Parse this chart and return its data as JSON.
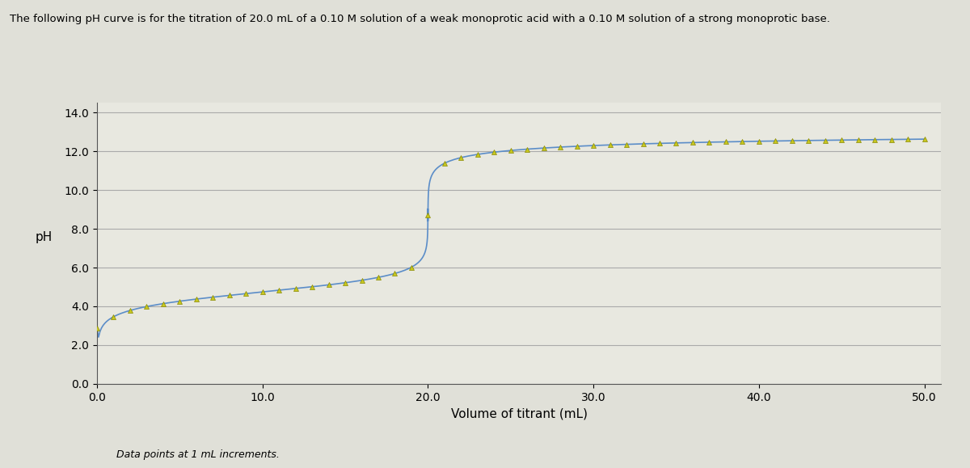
{
  "title": "The following pH curve is for the titration of 20.0 mL of a 0.10 M solution of a weak monoprotic acid with a 0.10 M solution of a strong monoprotic base.",
  "xlabel": "Volume of titrant (mL)",
  "ylabel": "pH",
  "annotation": "Data points at 1 mL increments.",
  "xlim": [
    0.0,
    51.0
  ],
  "ylim": [
    0.0,
    14.5
  ],
  "yticks": [
    0.0,
    2.0,
    4.0,
    6.0,
    8.0,
    10.0,
    12.0,
    14.0
  ],
  "xticks": [
    0.0,
    10.0,
    20.0,
    30.0,
    40.0,
    50.0
  ],
  "line_color": "#5b8dc8",
  "marker_color": "#c8c820",
  "marker_edge_color": "#888800",
  "marker_style": "^",
  "marker_size": 4,
  "line_width": 1.2,
  "background_color": "#e0e0d8",
  "plot_bg_color": "#e8e8e0",
  "pKa": 4.74,
  "Ca": 0.1,
  "Cb": 0.1,
  "Va": 20.0,
  "grid_color": "#aaaaaa",
  "figsize": [
    12.0,
    5.79
  ],
  "title_fontsize": 9.5,
  "label_fontsize": 11,
  "tick_fontsize": 10,
  "annotation_fontsize": 9
}
